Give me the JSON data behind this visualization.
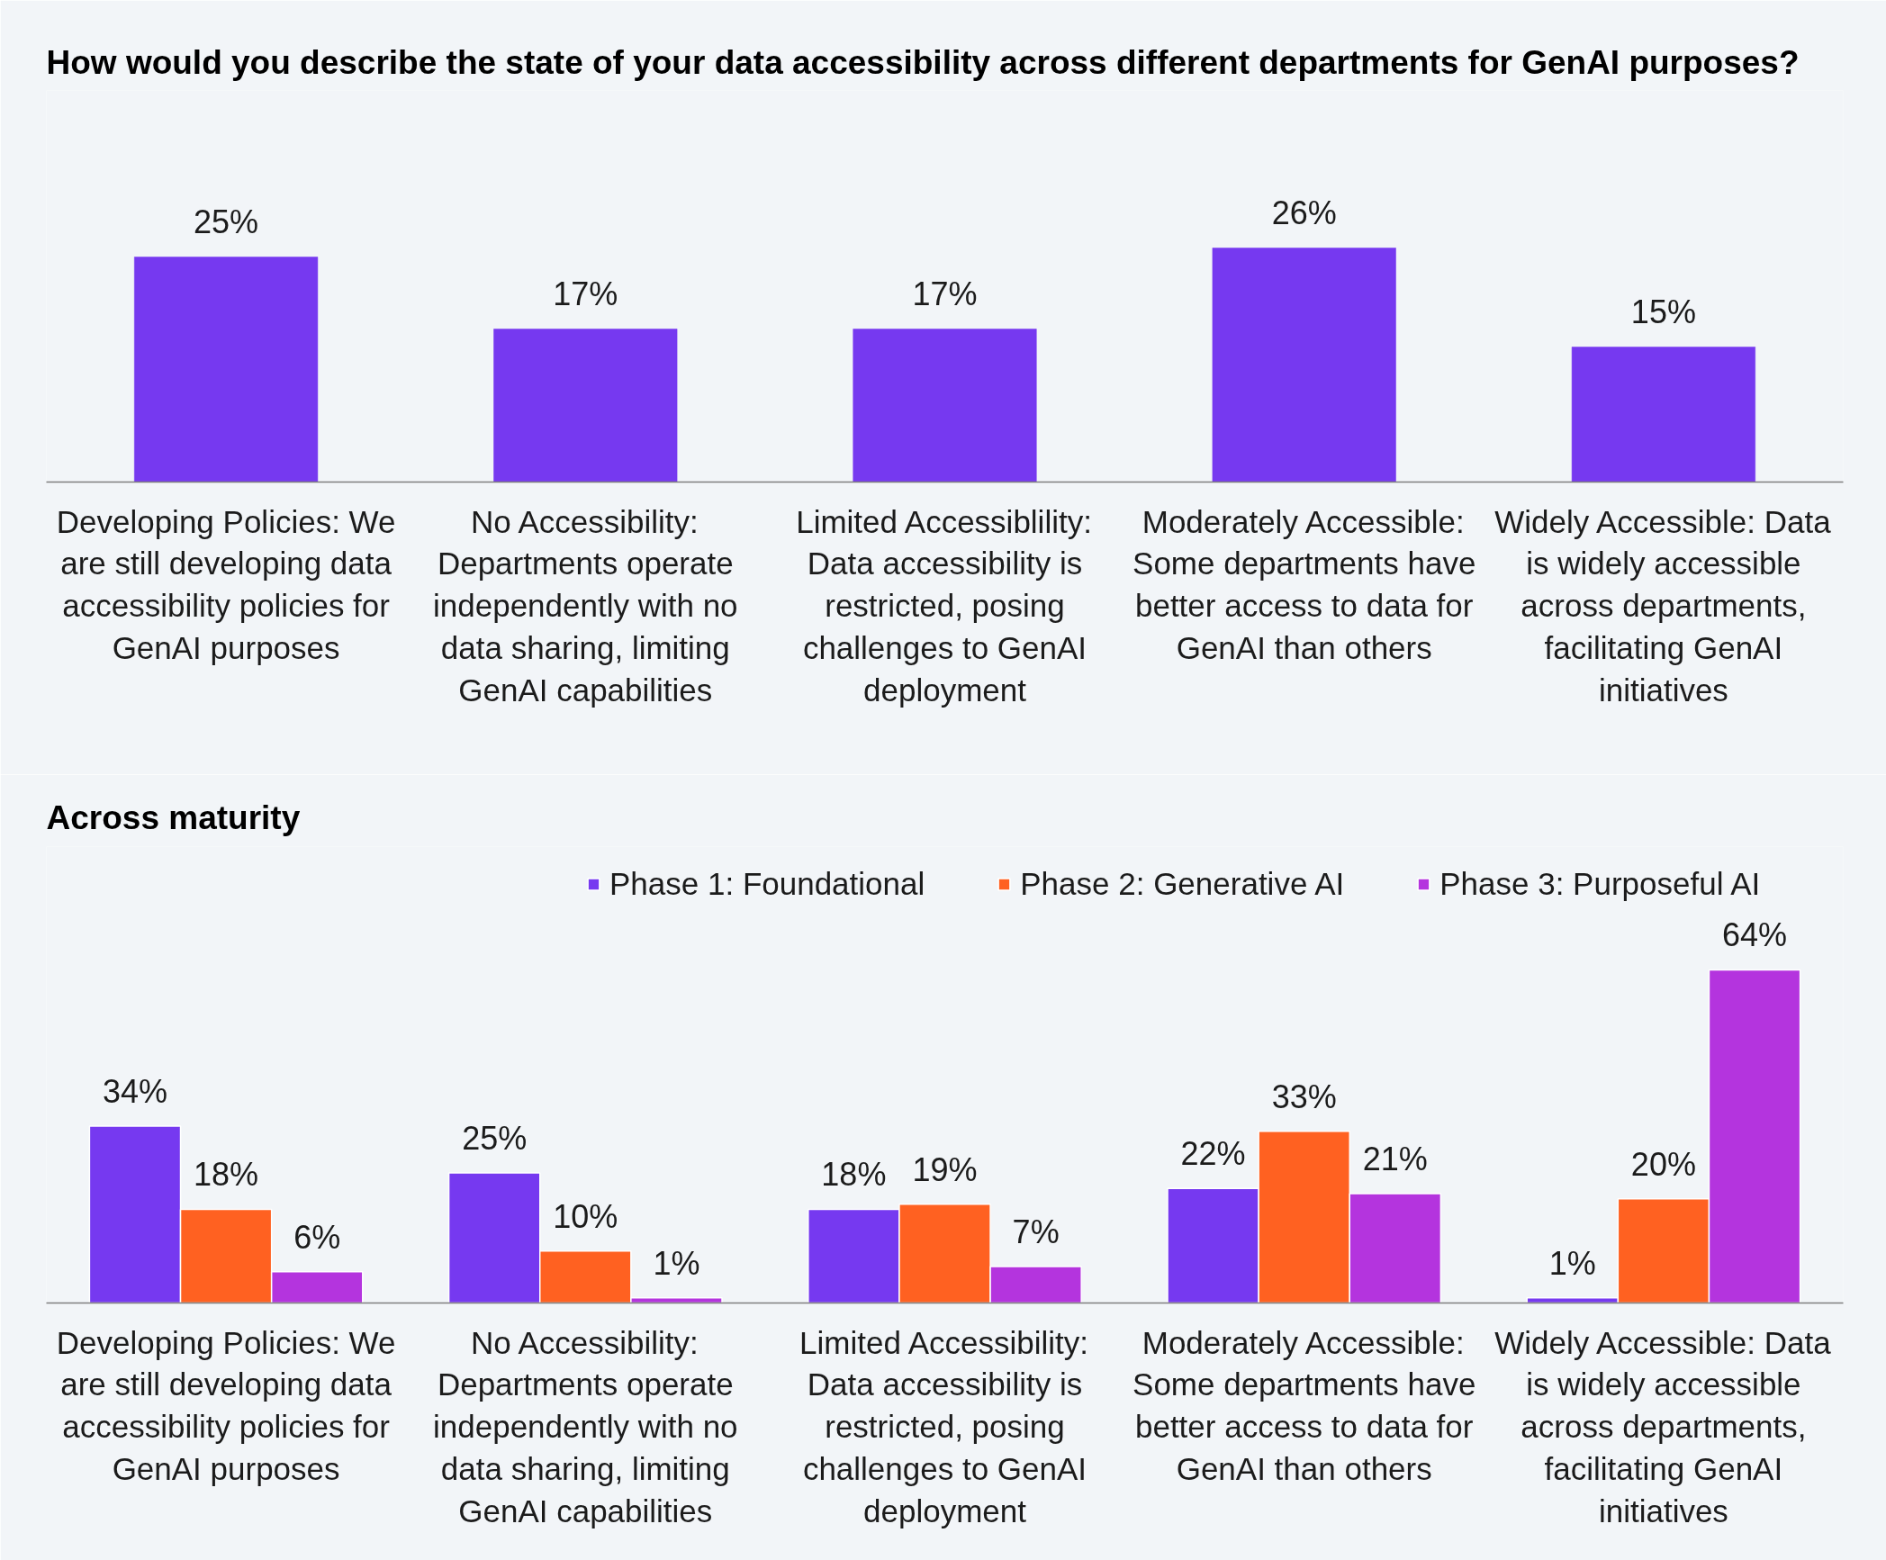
{
  "chart_data": [
    {
      "type": "bar",
      "title": "How would you describe the state of your data accessibility across different departments for GenAI purposes?",
      "categories": [
        "Developing Policies: We are still developing data accessibility policies for GenAI purposes",
        "No Accessibility: Departments operate independently with no data sharing, limiting GenAI capabilities",
        "Limited Accessiblility: Data accessibility is restricted, posing challenges to GenAI deployment",
        "Moderately Accessible: Some departments have better access to data for GenAI than others",
        "Widely Accessible: Data is widely accessible across departments, facilitating GenAI initiatives"
      ],
      "values": [
        25,
        17,
        17,
        26,
        15
      ],
      "value_labels": [
        "25%",
        "17%",
        "17%",
        "26%",
        "15%"
      ],
      "color": "#7639f0"
    },
    {
      "type": "bar",
      "title": "Across maturity",
      "categories": [
        "Developing Policies: We are still developing data accessibility policies for GenAI purposes",
        "No Accessibility: Departments operate independently with no data sharing, limiting GenAI capabilities",
        "Limited Accessibility: Data accessibility is restricted, posing challenges to GenAI deployment",
        "Moderately Accessible: Some departments have better access to data for GenAI than others",
        "Widely Accessible: Data is widely accessible across departments, facilitating GenAI initiatives"
      ],
      "series": [
        {
          "name": "Phase 1: Foundational",
          "color": "#7639f0",
          "values": [
            34,
            25,
            18,
            22,
            1
          ],
          "value_labels": [
            "34%",
            "25%",
            "18%",
            "22%",
            "1%"
          ]
        },
        {
          "name": "Phase 2: Generative AI",
          "color": "#ff6121",
          "values": [
            18,
            10,
            19,
            33,
            20
          ],
          "value_labels": [
            "18%",
            "10%",
            "19%",
            "33%",
            "20%"
          ]
        },
        {
          "name": "Phase 3: Purposeful AI",
          "color": "#b434de",
          "values": [
            6,
            1,
            7,
            21,
            64
          ],
          "value_labels": [
            "6%",
            "1%",
            "7%",
            "21%",
            "64%"
          ]
        }
      ],
      "legend": "top right"
    }
  ]
}
